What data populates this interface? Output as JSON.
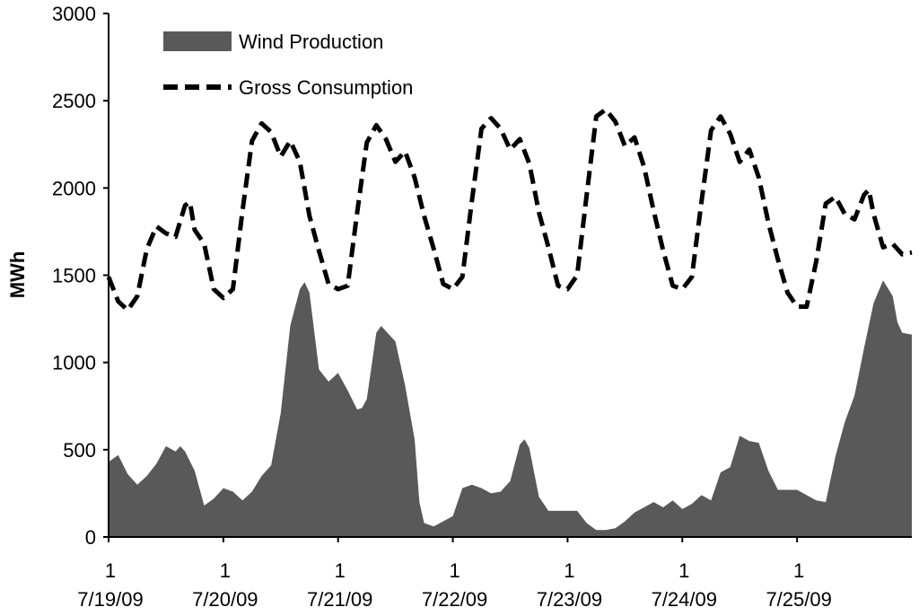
{
  "chart_data": {
    "type": "area",
    "title": "",
    "xlabel": "",
    "ylabel": "MWh",
    "ylim": [
      0,
      3000
    ],
    "y_ticks": [
      "0",
      "500",
      "1000",
      "1500",
      "2000",
      "2500",
      "3000"
    ],
    "x_ticks": [
      {
        "hour": "1",
        "date": "7/19/09"
      },
      {
        "hour": "1",
        "date": "7/20/09"
      },
      {
        "hour": "1",
        "date": "7/21/09"
      },
      {
        "hour": "1",
        "date": "7/22/09"
      },
      {
        "hour": "1",
        "date": "7/23/09"
      },
      {
        "hour": "1",
        "date": "7/24/09"
      },
      {
        "hour": "1",
        "date": "7/25/09"
      }
    ],
    "grid": false,
    "legend_position": "top-left",
    "x_unit": "hours",
    "x_max": 168,
    "series": [
      {
        "name": "Wind Production",
        "style": "area",
        "color": "#595959",
        "points": [
          [
            0,
            430
          ],
          [
            2,
            470
          ],
          [
            4,
            360
          ],
          [
            6,
            300
          ],
          [
            8,
            350
          ],
          [
            10,
            420
          ],
          [
            12,
            520
          ],
          [
            14,
            490
          ],
          [
            15,
            520
          ],
          [
            16,
            490
          ],
          [
            18,
            380
          ],
          [
            20,
            180
          ],
          [
            22,
            220
          ],
          [
            24,
            280
          ],
          [
            26,
            260
          ],
          [
            28,
            210
          ],
          [
            30,
            260
          ],
          [
            32,
            350
          ],
          [
            34,
            410
          ],
          [
            36,
            710
          ],
          [
            38,
            1210
          ],
          [
            40,
            1420
          ],
          [
            41,
            1460
          ],
          [
            42,
            1400
          ],
          [
            44,
            960
          ],
          [
            46,
            890
          ],
          [
            48,
            940
          ],
          [
            50,
            840
          ],
          [
            52,
            730
          ],
          [
            53,
            740
          ],
          [
            54,
            790
          ],
          [
            56,
            1170
          ],
          [
            57,
            1210
          ],
          [
            58,
            1180
          ],
          [
            60,
            1120
          ],
          [
            62,
            870
          ],
          [
            64,
            560
          ],
          [
            65,
            200
          ],
          [
            66,
            80
          ],
          [
            68,
            60
          ],
          [
            70,
            90
          ],
          [
            72,
            120
          ],
          [
            74,
            280
          ],
          [
            76,
            300
          ],
          [
            78,
            280
          ],
          [
            80,
            250
          ],
          [
            82,
            260
          ],
          [
            84,
            320
          ],
          [
            86,
            530
          ],
          [
            87,
            560
          ],
          [
            88,
            510
          ],
          [
            90,
            230
          ],
          [
            92,
            150
          ],
          [
            94,
            150
          ],
          [
            96,
            150
          ],
          [
            98,
            150
          ],
          [
            100,
            80
          ],
          [
            102,
            40
          ],
          [
            104,
            40
          ],
          [
            106,
            50
          ],
          [
            108,
            90
          ],
          [
            110,
            140
          ],
          [
            112,
            170
          ],
          [
            114,
            200
          ],
          [
            116,
            170
          ],
          [
            118,
            210
          ],
          [
            120,
            160
          ],
          [
            122,
            190
          ],
          [
            124,
            240
          ],
          [
            126,
            210
          ],
          [
            128,
            370
          ],
          [
            130,
            400
          ],
          [
            132,
            580
          ],
          [
            134,
            550
          ],
          [
            136,
            540
          ],
          [
            138,
            380
          ],
          [
            140,
            270
          ],
          [
            142,
            270
          ],
          [
            144,
            270
          ],
          [
            146,
            240
          ],
          [
            148,
            210
          ],
          [
            150,
            200
          ],
          [
            152,
            460
          ],
          [
            154,
            660
          ],
          [
            156,
            810
          ],
          [
            158,
            1080
          ],
          [
            160,
            1340
          ],
          [
            162,
            1470
          ],
          [
            164,
            1380
          ],
          [
            165,
            1230
          ],
          [
            166,
            1170
          ],
          [
            168,
            1160
          ]
        ]
      },
      {
        "name": "Gross Consumption",
        "style": "dashed-line",
        "color": "#000000",
        "points": [
          [
            0,
            1490
          ],
          [
            2,
            1350
          ],
          [
            4,
            1300
          ],
          [
            6,
            1380
          ],
          [
            8,
            1650
          ],
          [
            10,
            1780
          ],
          [
            12,
            1740
          ],
          [
            14,
            1720
          ],
          [
            16,
            1900
          ],
          [
            17,
            1920
          ],
          [
            18,
            1760
          ],
          [
            20,
            1680
          ],
          [
            22,
            1420
          ],
          [
            24,
            1370
          ],
          [
            26,
            1420
          ],
          [
            28,
            1870
          ],
          [
            30,
            2270
          ],
          [
            32,
            2370
          ],
          [
            34,
            2320
          ],
          [
            36,
            2180
          ],
          [
            38,
            2270
          ],
          [
            40,
            2150
          ],
          [
            42,
            1840
          ],
          [
            44,
            1640
          ],
          [
            46,
            1450
          ],
          [
            48,
            1420
          ],
          [
            50,
            1440
          ],
          [
            52,
            1860
          ],
          [
            54,
            2260
          ],
          [
            56,
            2360
          ],
          [
            58,
            2280
          ],
          [
            60,
            2150
          ],
          [
            62,
            2210
          ],
          [
            64,
            2060
          ],
          [
            66,
            1840
          ],
          [
            68,
            1650
          ],
          [
            70,
            1450
          ],
          [
            72,
            1420
          ],
          [
            74,
            1490
          ],
          [
            76,
            1930
          ],
          [
            78,
            2340
          ],
          [
            80,
            2400
          ],
          [
            82,
            2340
          ],
          [
            84,
            2220
          ],
          [
            86,
            2280
          ],
          [
            88,
            2140
          ],
          [
            90,
            1860
          ],
          [
            92,
            1660
          ],
          [
            94,
            1440
          ],
          [
            96,
            1420
          ],
          [
            98,
            1500
          ],
          [
            100,
            1960
          ],
          [
            102,
            2410
          ],
          [
            104,
            2450
          ],
          [
            106,
            2380
          ],
          [
            108,
            2240
          ],
          [
            110,
            2290
          ],
          [
            112,
            2120
          ],
          [
            114,
            1870
          ],
          [
            116,
            1640
          ],
          [
            118,
            1440
          ],
          [
            120,
            1420
          ],
          [
            122,
            1490
          ],
          [
            124,
            1920
          ],
          [
            126,
            2330
          ],
          [
            128,
            2410
          ],
          [
            130,
            2310
          ],
          [
            132,
            2150
          ],
          [
            134,
            2220
          ],
          [
            136,
            2060
          ],
          [
            138,
            1800
          ],
          [
            140,
            1590
          ],
          [
            142,
            1400
          ],
          [
            144,
            1320
          ],
          [
            146,
            1320
          ],
          [
            148,
            1580
          ],
          [
            150,
            1910
          ],
          [
            152,
            1950
          ],
          [
            154,
            1850
          ],
          [
            156,
            1820
          ],
          [
            158,
            1960
          ],
          [
            159,
            1990
          ],
          [
            160,
            1850
          ],
          [
            162,
            1660
          ],
          [
            164,
            1680
          ],
          [
            166,
            1620
          ],
          [
            168,
            1630
          ]
        ]
      }
    ]
  }
}
